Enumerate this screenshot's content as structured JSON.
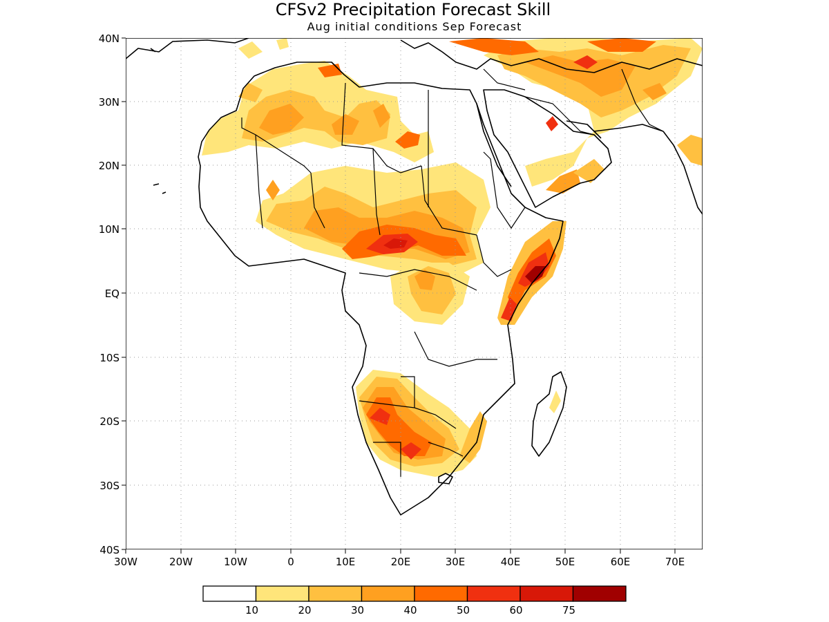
{
  "title": "CFSv2 Precipitation Forecast Skill",
  "subtitle": "Aug initial conditions  Sep Forecast",
  "map": {
    "lon_range": [
      -30,
      75
    ],
    "lat_range": [
      -40,
      40
    ],
    "lat_labels": [
      "40N",
      "30N",
      "20N",
      "10N",
      "EQ",
      "10S",
      "20S",
      "30S",
      "40S"
    ],
    "lon_labels": [
      "30W",
      "20W",
      "10W",
      "0",
      "10E",
      "20E",
      "30E",
      "40E",
      "50E",
      "60E",
      "70E"
    ],
    "grid": true
  },
  "legend": {
    "colors": [
      "#ffffff",
      "#ffe57a",
      "#ffc040",
      "#ffa020",
      "#ff6a00",
      "#f03010",
      "#d81808",
      "#a00000"
    ],
    "labels": [
      "10",
      "20",
      "30",
      "40",
      "50",
      "60",
      "75"
    ]
  }
}
